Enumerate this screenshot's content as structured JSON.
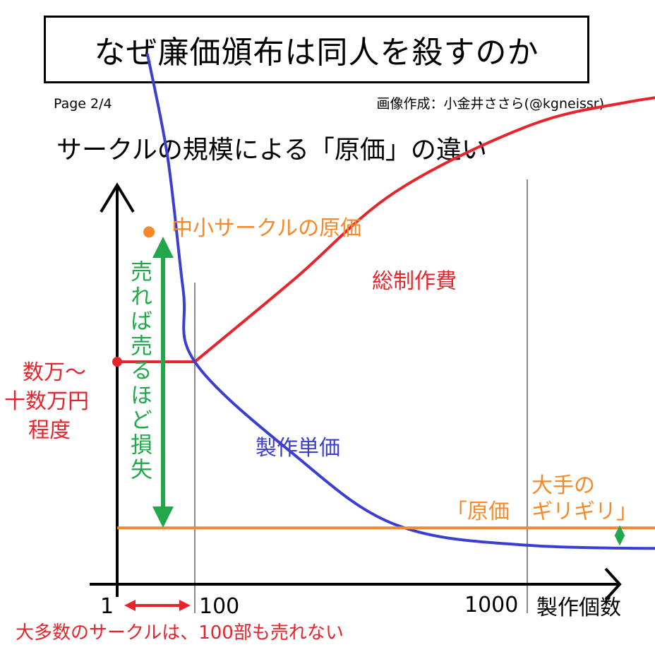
{
  "header": {
    "title": "なぜ廉価頒布は同人を殺すのか",
    "page": "Page 2/4",
    "credit": "画像作成：小金井ささら(@kgneissr)"
  },
  "subtitle": "サークルの規模による「原価」の違い",
  "colors": {
    "total_cost": "#e8232b",
    "unit_cost": "#3b3fd0",
    "major_cost": "#f7892a",
    "loss_arrow": "#22a84a",
    "axis": "#000000",
    "gridline": "#8a8a8a",
    "annotation_red": "#e8232b"
  },
  "chart_data": {
    "type": "line",
    "title": "",
    "xlabel": "製作個数",
    "ylabel": "",
    "x_scale": "log",
    "x_ticks": [
      "1",
      "100",
      "1000"
    ],
    "series": [
      {
        "name": "総制作費",
        "points": [
          [
            1,
            11
          ],
          [
            100,
            11
          ],
          [
            200,
            35
          ],
          [
            400,
            60
          ],
          [
            1000,
            79
          ],
          [
            2000,
            86
          ],
          [
            4000,
            90
          ]
        ]
      },
      {
        "name": "製作単価",
        "points": [
          [
            6,
            100
          ],
          [
            20,
            70
          ],
          [
            50,
            32
          ],
          [
            100,
            11
          ],
          [
            200,
            -16
          ],
          [
            400,
            -36
          ],
          [
            1000,
            -42
          ],
          [
            4000,
            -43
          ]
        ]
      },
      {
        "name": "",
        "points": [
          [
            1,
            -37
          ],
          [
            4000,
            -37
          ]
        ]
      }
    ],
    "annotations": {
      "small_circle_cost": "中小サークルの原価",
      "total_cost_label": "総制作費",
      "unit_cost_label": "製作単価",
      "major_cost_line1": "大手の",
      "major_cost_line2": "「原価",
      "major_cost_line3": "ギリギリ」",
      "loss_text": "売れば売るほど損失",
      "cost_level_line1": "数万～",
      "cost_level_line2": "十数万円",
      "cost_level_line3": "程度",
      "under_100_note": "大多数のサークルは、100部も売れない"
    }
  }
}
